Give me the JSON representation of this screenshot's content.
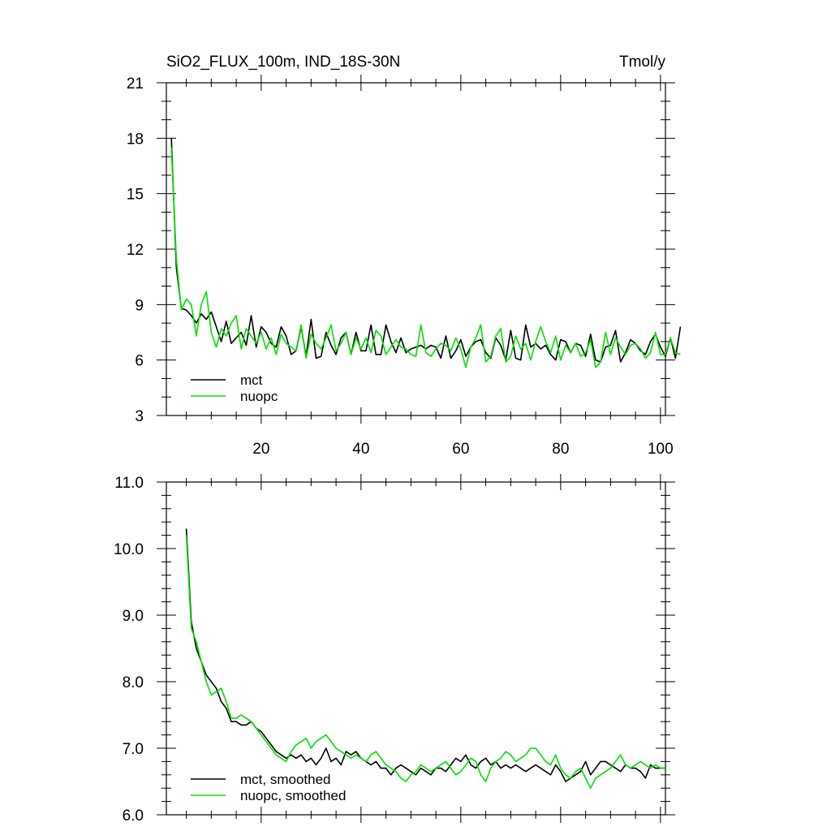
{
  "chart_data": [
    {
      "type": "line",
      "title": "SiO2_FLUX_100m, IND_18S-30N",
      "units": "Tmol/y",
      "xlim": [
        1,
        101
      ],
      "ylim": [
        3,
        21
      ],
      "x_ticks": [
        20,
        40,
        60,
        80,
        100
      ],
      "x_tick_labels": [
        "20",
        "40",
        "60",
        "80",
        "100"
      ],
      "y_ticks": [
        3,
        6,
        9,
        12,
        15,
        18,
        21
      ],
      "y_tick_labels": [
        "3",
        "6",
        "9",
        "12",
        "15",
        "18",
        "21"
      ],
      "legend": "bottom-left",
      "grid": false,
      "x_start": 2,
      "series": [
        {
          "name": "mct",
          "color": "#000000",
          "values": [
            18.0,
            11.0,
            8.8,
            8.7,
            8.4,
            8.0,
            8.5,
            8.2,
            8.6,
            7.8,
            7.0,
            8.1,
            6.9,
            7.2,
            7.5,
            6.8,
            8.4,
            6.7,
            7.8,
            7.5,
            6.9,
            6.7,
            7.8,
            7.3,
            6.3,
            6.5,
            7.8,
            6.2,
            8.2,
            6.1,
            6.2,
            7.5,
            6.8,
            6.3,
            7.2,
            7.5,
            6.3,
            7.5,
            6.5,
            6.5,
            7.9,
            6.3,
            6.3,
            7.9,
            7.0,
            6.4,
            7.2,
            6.4,
            6.6,
            6.7,
            6.8,
            6.6,
            6.8,
            6.7,
            6.1,
            7.3,
            6.1,
            6.5,
            7.1,
            6.2,
            6.7,
            7.0,
            7.1,
            6.4,
            6.1,
            7.2,
            6.8,
            6.0,
            7.6,
            6.1,
            6.0,
            7.9,
            6.7,
            6.9,
            6.6,
            6.8,
            6.3,
            6.0,
            7.1,
            7.0,
            6.4,
            6.9,
            6.8,
            6.2,
            7.4,
            6.0,
            5.9,
            6.7,
            6.8,
            7.6,
            5.9,
            6.4,
            7.1,
            6.9,
            6.5,
            6.3,
            7.0,
            7.4,
            6.7,
            6.2,
            7.2,
            6.1,
            7.8
          ]
        },
        {
          "name": "nuopc",
          "color": "#00e000",
          "values": [
            17.5,
            11.5,
            8.7,
            9.3,
            9.0,
            7.3,
            9.0,
            9.7,
            7.5,
            6.7,
            7.7,
            7.3,
            8.0,
            8.4,
            6.6,
            7.7,
            7.3,
            6.9,
            7.5,
            6.6,
            7.2,
            6.3,
            7.4,
            6.9,
            6.7,
            6.5,
            7.9,
            6.1,
            7.4,
            6.9,
            6.6,
            7.2,
            7.9,
            6.5,
            6.9,
            7.5,
            6.3,
            7.2,
            6.6,
            7.2,
            6.4,
            7.6,
            7.3,
            6.3,
            6.7,
            7.1,
            6.7,
            6.6,
            6.3,
            6.2,
            7.9,
            6.4,
            6.2,
            6.6,
            6.9,
            6.8,
            6.5,
            7.2,
            6.6,
            5.6,
            6.7,
            7.2,
            7.9,
            5.9,
            6.2,
            7.3,
            7.7,
            5.9,
            6.2,
            7.3,
            6.6,
            6.9,
            6.0,
            7.0,
            7.8,
            7.0,
            6.4,
            7.3,
            6.0,
            6.8,
            6.4,
            6.9,
            6.2,
            6.4,
            7.1,
            5.6,
            5.9,
            7.5,
            6.3,
            7.2,
            6.7,
            6.3,
            6.8,
            6.9,
            6.6,
            6.1,
            6.4,
            7.5,
            6.3,
            6.3,
            7.2,
            6.4,
            6.3
          ]
        }
      ]
    },
    {
      "type": "line",
      "title": "",
      "xlim": [
        1,
        101
      ],
      "ylim": [
        6.0,
        11.0
      ],
      "x_ticks": [
        20,
        40,
        60,
        80,
        100
      ],
      "x_tick_labels": [],
      "y_ticks": [
        6.0,
        7.0,
        8.0,
        9.0,
        10.0,
        11.0
      ],
      "y_tick_labels": [
        "6.0",
        "7.0",
        "8.0",
        "9.0",
        "10.0",
        "11.0"
      ],
      "legend": "bottom-left",
      "grid": false,
      "x_start": 5,
      "series": [
        {
          "name": "mct, smoothed",
          "color": "#000000",
          "values": [
            10.3,
            8.9,
            8.5,
            8.3,
            8.1,
            8.0,
            7.9,
            7.7,
            7.6,
            7.4,
            7.4,
            7.35,
            7.35,
            7.4,
            7.3,
            7.25,
            7.15,
            7.05,
            6.95,
            6.9,
            6.85,
            6.9,
            6.85,
            6.9,
            6.8,
            6.85,
            6.75,
            6.85,
            7.0,
            6.8,
            6.85,
            6.75,
            6.95,
            6.9,
            6.95,
            6.85,
            6.8,
            6.75,
            6.8,
            6.7,
            6.7,
            6.6,
            6.7,
            6.75,
            6.7,
            6.65,
            6.6,
            6.7,
            6.65,
            6.6,
            6.7,
            6.7,
            6.65,
            6.75,
            6.85,
            6.8,
            6.9,
            6.75,
            6.7,
            6.8,
            6.85,
            6.75,
            6.8,
            6.7,
            6.75,
            6.7,
            6.75,
            6.7,
            6.65,
            6.7,
            6.75,
            6.7,
            6.65,
            6.6,
            6.75,
            6.65,
            6.5,
            6.55,
            6.6,
            6.65,
            6.8,
            6.6,
            6.7,
            6.8,
            6.8,
            6.75,
            6.7,
            6.65,
            6.75,
            6.7,
            6.7,
            6.65,
            6.55,
            6.75,
            6.7,
            6.7,
            6.7
          ]
        },
        {
          "name": "nuopc, smoothed",
          "color": "#00e000",
          "values": [
            10.2,
            8.8,
            8.6,
            8.3,
            8.0,
            7.8,
            7.85,
            7.9,
            7.7,
            7.45,
            7.45,
            7.5,
            7.45,
            7.4,
            7.3,
            7.2,
            7.1,
            7.0,
            6.9,
            6.85,
            6.8,
            6.95,
            7.05,
            7.1,
            7.15,
            7.0,
            7.1,
            7.15,
            7.2,
            7.1,
            7.0,
            6.95,
            6.9,
            6.85,
            6.9,
            6.85,
            6.8,
            6.9,
            6.95,
            6.85,
            6.75,
            6.7,
            6.65,
            6.55,
            6.5,
            6.6,
            6.65,
            6.75,
            6.7,
            6.65,
            6.7,
            6.75,
            6.8,
            6.7,
            6.6,
            6.65,
            6.75,
            6.85,
            6.8,
            6.6,
            6.5,
            6.7,
            6.8,
            6.85,
            6.95,
            6.9,
            6.8,
            6.85,
            6.9,
            7.0,
            7.0,
            6.9,
            6.8,
            6.75,
            6.9,
            6.7,
            6.6,
            6.55,
            6.65,
            6.7,
            6.55,
            6.4,
            6.55,
            6.6,
            6.65,
            6.7,
            6.8,
            6.9,
            6.75,
            6.7,
            6.75,
            6.8,
            6.75,
            6.7,
            6.75,
            6.7,
            6.7
          ]
        }
      ]
    }
  ]
}
